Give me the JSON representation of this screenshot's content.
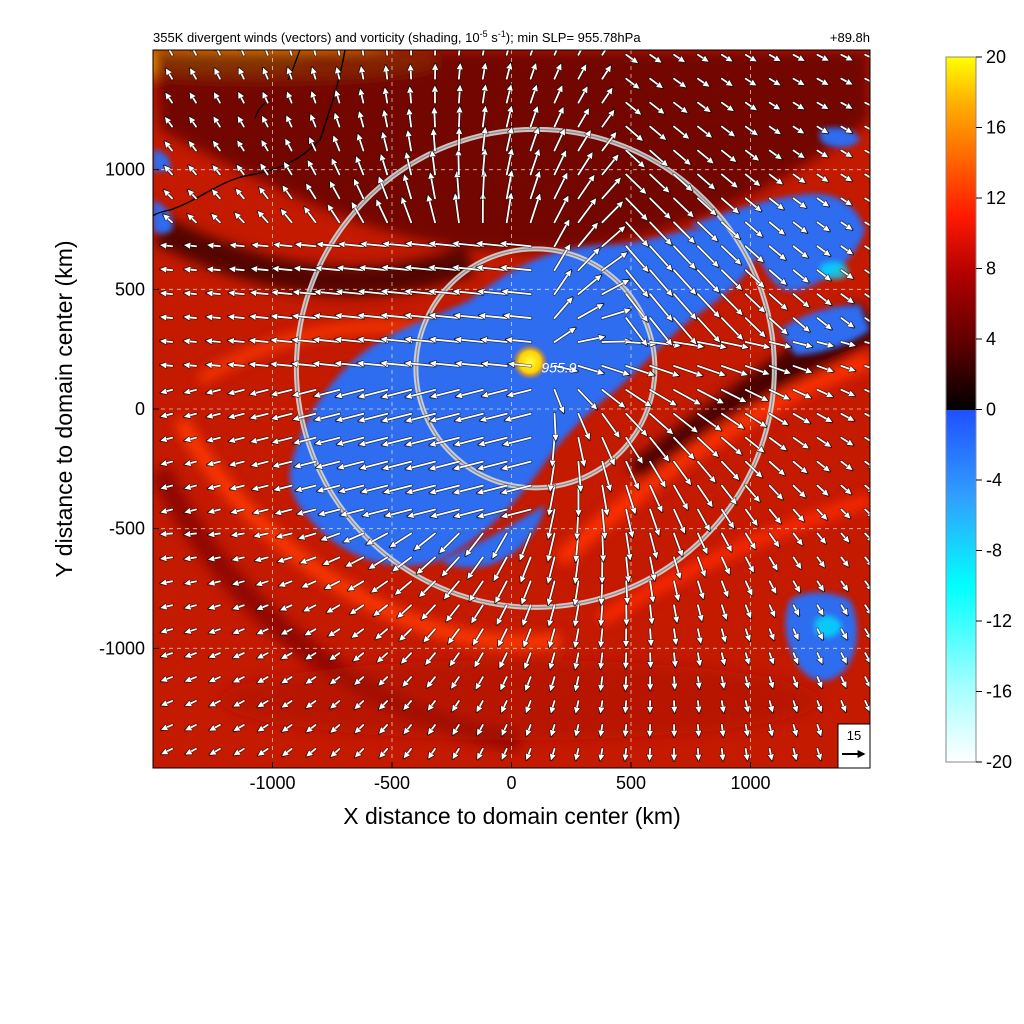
{
  "chart_data": {
    "type": "heatmap",
    "title": "355K divergent winds (vectors) and vorticity (shading, 10-5 s-1); min SLP= 955.78hPa",
    "title_parts": {
      "prefix": "355K divergent winds (vectors) and vorticity (shading, 10",
      "exp1": "-5",
      "mid": " s",
      "exp2": "-1",
      "suffix": "); min SLP= 955.78hPa"
    },
    "time_label": "+89.8h",
    "xlabel": "X distance to domain center (km)",
    "ylabel": "Y distance to domain center (km)",
    "xlim": [
      -1500,
      1500
    ],
    "ylim": [
      -1500,
      1500
    ],
    "xticks": [
      -1000,
      -500,
      0,
      500,
      1000
    ],
    "yticks": [
      -1000,
      -500,
      0,
      500,
      1000
    ],
    "xtick_labels": [
      "-1000",
      "-500",
      "0",
      "500",
      "1000"
    ],
    "ytick_labels": [
      "-1000",
      "-500",
      "0",
      "500",
      "1000"
    ],
    "grid": true,
    "center_label": "955.9",
    "center": {
      "x": 100,
      "y": 170
    },
    "range_rings_km": [
      500,
      1000
    ],
    "reference_vector": {
      "label": "15",
      "value": 15
    },
    "colorbar": {
      "min": -20,
      "max": 20,
      "ticks": [
        20,
        16,
        12,
        8,
        4,
        0,
        -4,
        -8,
        -12,
        -16,
        -20
      ],
      "tick_labels": [
        "20",
        "16",
        "12",
        "8",
        "4",
        "0",
        "-4",
        "-8",
        "-12",
        "-16",
        "-20"
      ],
      "positive_colors": [
        "#000000",
        "#5a0000",
        "#b00000",
        "#ff1a00",
        "#ff6a00",
        "#ffb000",
        "#ffff00"
      ],
      "negative_colors": [
        "#2050ff",
        "#30a0ff",
        "#00ffff",
        "#a0ffff",
        "#ffffff"
      ]
    },
    "colors": {
      "negative_region": "#2d6cf0",
      "background_field": "#c41a00",
      "dark_band": "#3a0000",
      "ring": "#d8d8d8"
    }
  }
}
